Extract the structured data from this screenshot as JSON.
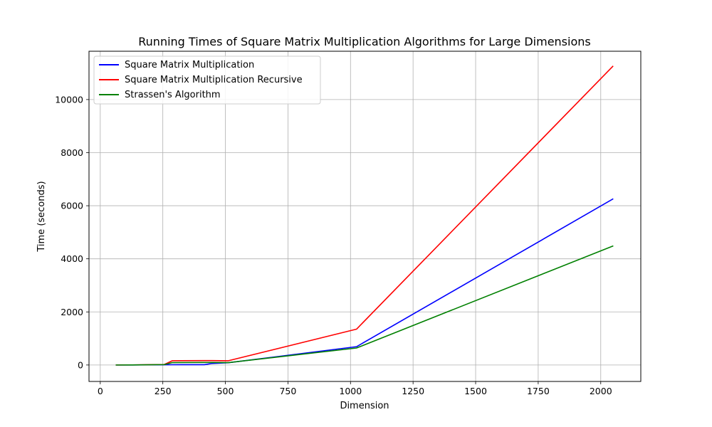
{
  "chart_data": {
    "type": "line",
    "title": "Running Times of Square Matrix Multiplication Algorithms for Large Dimensions",
    "xlabel": "Dimension",
    "ylabel": "Time (seconds)",
    "xlim": [
      -45,
      2160
    ],
    "ylim": [
      -620,
      11820
    ],
    "xticks": [
      0,
      250,
      500,
      750,
      1000,
      1250,
      1500,
      1750,
      2000
    ],
    "yticks": [
      0,
      2000,
      4000,
      6000,
      8000,
      10000
    ],
    "grid": true,
    "legend_position": "top-left",
    "series": [
      {
        "name": "Square Matrix Multiplication",
        "color": "#0000ff",
        "x": [
          64,
          128,
          256,
          288,
          416,
          448,
          512,
          1024,
          2048
        ],
        "y": [
          0,
          2,
          8,
          10,
          12,
          60,
          85,
          690,
          6250
        ]
      },
      {
        "name": "Square Matrix Multiplication Recursive",
        "color": "#ff0000",
        "x": [
          64,
          128,
          256,
          288,
          416,
          448,
          512,
          1024,
          2048
        ],
        "y": [
          0,
          3,
          20,
          160,
          165,
          165,
          160,
          1350,
          11250
        ]
      },
      {
        "name": "Strassen's Algorithm",
        "color": "#008000",
        "x": [
          64,
          128,
          256,
          288,
          416,
          448,
          512,
          1024,
          2048
        ],
        "y": [
          0,
          2,
          15,
          90,
          95,
          95,
          90,
          640,
          4480
        ]
      }
    ]
  }
}
